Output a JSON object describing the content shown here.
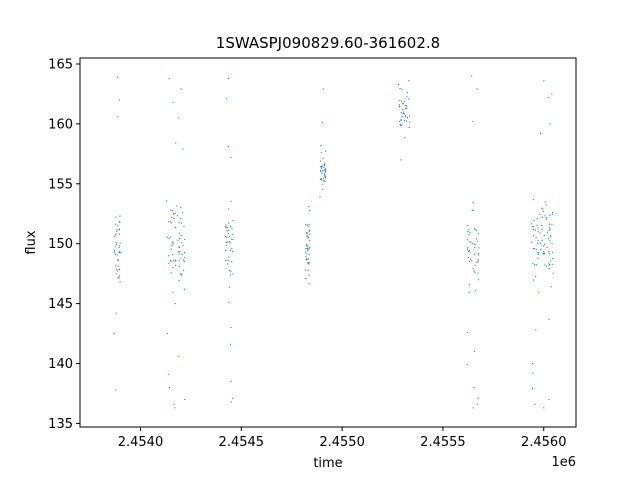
{
  "chart_data": {
    "type": "scatter",
    "title": "1SWASPJ090829.60-361602.8",
    "xlabel": "time",
    "ylabel": "flux",
    "x_offset_label": "1e6",
    "xlim": [
      2.4537,
      2.45616
    ],
    "ylim": [
      134.7,
      165.5
    ],
    "x_ticks": [
      2.454,
      2.4545,
      2.455,
      2.4555,
      2.456
    ],
    "x_tick_labels": [
      "2.4540",
      "2.4545",
      "2.4550",
      "2.4555",
      "2.4560"
    ],
    "y_ticks": [
      135,
      140,
      145,
      150,
      155,
      160,
      165
    ],
    "y_tick_labels": [
      "135",
      "140",
      "145",
      "150",
      "155",
      "160",
      "165"
    ],
    "grid": false,
    "color": "#1f77b4",
    "series": [
      {
        "clusters": [
          {
            "x_range": [
              2.45387,
              2.4539
            ],
            "y_center": 150,
            "y_spread": 3,
            "outliers_y": [
              160.6,
              162.0,
              144.2,
              142.5,
              137.8,
              163.9
            ]
          },
          {
            "x_range": [
              2.45413,
              2.45422
            ],
            "y_center": 150,
            "y_spread": 2.8,
            "outliers_y": [
              163.8,
              162.9,
              161.8,
              160.5,
              158.4,
              157.9,
              145.0,
              142.5,
              140.6,
              139.1,
              138.0,
              137.0,
              136.6,
              136.3
            ]
          },
          {
            "x_range": [
              2.45442,
              2.45446
            ],
            "y_center": 150,
            "y_spread": 2.5,
            "outliers_y": [
              163.8,
              162.1,
              158.1,
              157.2,
              145.1,
              143.0,
              141.6,
              138.5,
              137.1,
              136.8
            ]
          },
          {
            "x_range": [
              2.45482,
              2.45484
            ],
            "y_center": 150,
            "y_spread": 2.4,
            "outliers_y": []
          },
          {
            "x_range": [
              2.45489,
              2.45492
            ],
            "y_center": 156,
            "y_spread": 1.0,
            "outliers_y": [
              162.9,
              160.1,
              158.2
            ]
          },
          {
            "x_range": [
              2.45528,
              2.45534
            ],
            "y_center": 161,
            "y_spread": 1.4,
            "outliers_y": [
              163.6,
              157.0
            ]
          },
          {
            "x_range": [
              2.45562,
              2.45568
            ],
            "y_center": 150,
            "y_spread": 2.8,
            "outliers_y": [
              164.0,
              162.9,
              160.2,
              142.6,
              141.0,
              139.9,
              138.0,
              137.1,
              136.6,
              136.3
            ]
          },
          {
            "x_range": [
              2.45594,
              2.45605
            ],
            "y_center": 150,
            "y_spread": 2.8,
            "outliers_y": [
              163.6,
              162.5,
              162.2,
              160.0,
              159.2,
              143.7,
              142.8,
              140.0,
              139.2,
              137.9,
              137.0,
              136.6,
              136.3
            ]
          }
        ]
      }
    ]
  }
}
